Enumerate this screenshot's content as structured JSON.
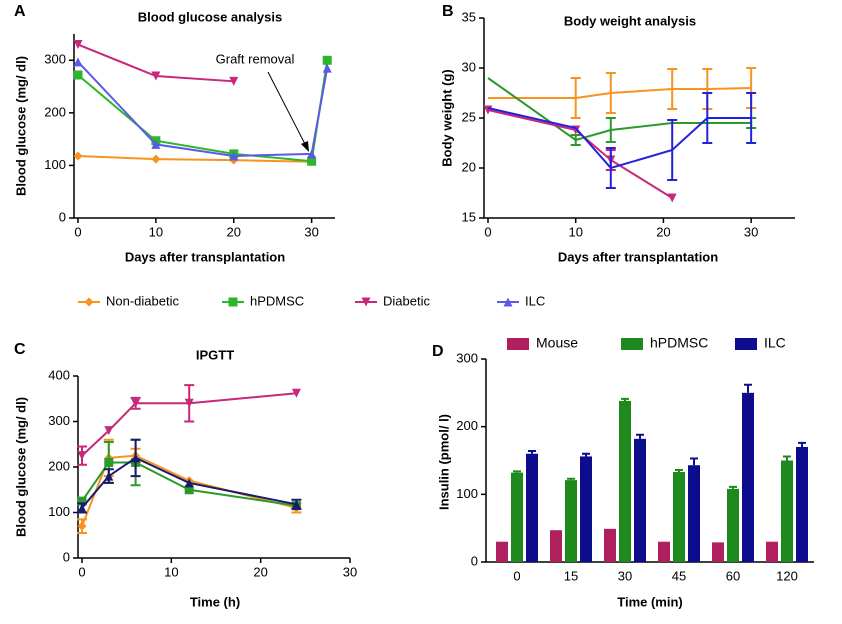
{
  "chart_data": [
    {
      "panel": "A",
      "type": "line",
      "title": "Blood glucose analysis",
      "xlabel": "Days after transplantation",
      "ylabel": "Blood glucose (mg/ dl)",
      "xlim": [
        0,
        33
      ],
      "ylim": [
        0,
        350
      ],
      "xticks": [
        0,
        10,
        20,
        30
      ],
      "yticks": [
        0,
        100,
        200,
        300
      ],
      "legend": "bottom",
      "annotation": "Graft removal",
      "series": [
        {
          "name": "Non-diabetic",
          "color": "#f7931e",
          "marker": "diamond",
          "x": [
            0,
            10,
            20,
            30
          ],
          "values": [
            118,
            112,
            110,
            107
          ]
        },
        {
          "name": "hPDMSC",
          "color": "#2db52d",
          "marker": "square",
          "x": [
            0,
            10,
            20,
            30,
            32
          ],
          "values": [
            272,
            147,
            122,
            108,
            300
          ]
        },
        {
          "name": "Diabetic",
          "color": "#c8287a",
          "marker": "tri-down",
          "x": [
            0,
            10,
            20
          ],
          "values": [
            330,
            270,
            260
          ]
        },
        {
          "name": "ILC",
          "color": "#5a5ae6",
          "marker": "tri-up",
          "x": [
            0,
            10,
            20,
            30,
            32
          ],
          "values": [
            297,
            140,
            118,
            122,
            285
          ]
        }
      ]
    },
    {
      "panel": "B",
      "type": "line",
      "title": "Body weight analysis",
      "xlabel": "Days after transplantation",
      "ylabel": "Body weight (g)",
      "xlim": [
        0,
        35
      ],
      "ylim": [
        15,
        35
      ],
      "xticks": [
        0,
        10,
        20,
        30
      ],
      "yticks": [
        15,
        20,
        25,
        30,
        35
      ],
      "series": [
        {
          "color": "#f7931e",
          "marker": "none",
          "x": [
            0,
            10,
            14,
            21,
            25,
            30
          ],
          "values": [
            27.0,
            27.0,
            27.5,
            27.9,
            27.9,
            28.0
          ],
          "errors": [
            null,
            2,
            2,
            2,
            2,
            2
          ]
        },
        {
          "color": "#2a9a2a",
          "marker": "none",
          "x": [
            0,
            10,
            14,
            21,
            25,
            30
          ],
          "values": [
            29.0,
            22.8,
            23.8,
            24.5,
            24.5,
            24.5
          ],
          "errors": [
            null,
            0.5,
            1.2,
            null,
            null,
            0.5
          ]
        },
        {
          "color": "#c8287a",
          "marker": "tri-down",
          "x": [
            0,
            10,
            14,
            21
          ],
          "values": [
            25.8,
            23.8,
            20.8,
            17.0
          ],
          "errors": [
            null,
            null,
            1,
            null
          ]
        },
        {
          "color": "#2222dd",
          "marker": "none",
          "x": [
            0,
            10,
            14,
            21,
            25,
            30
          ],
          "values": [
            26.0,
            24.0,
            20.0,
            21.8,
            25.0,
            25.0
          ],
          "errors": [
            null,
            null,
            2,
            3,
            2.5,
            2.5
          ]
        }
      ]
    },
    {
      "panel": "C",
      "type": "line",
      "title": "IPGTT",
      "xlabel": "Time (h)",
      "ylabel": "Blood glucose (mg/ dl)",
      "xlim": [
        0,
        30
      ],
      "ylim": [
        0,
        400
      ],
      "xticks": [
        0,
        10,
        20,
        30
      ],
      "yticks": [
        0,
        100,
        200,
        300,
        400
      ],
      "series": [
        {
          "color": "#f7931e",
          "marker": "diamond",
          "x": [
            0,
            3,
            6,
            12,
            24
          ],
          "values": [
            70,
            220,
            225,
            170,
            110
          ],
          "errors": [
            15,
            40,
            15,
            null,
            10
          ]
        },
        {
          "color": "#2a9a2a",
          "marker": "square",
          "x": [
            0,
            3,
            6,
            12,
            24
          ],
          "values": [
            125,
            210,
            210,
            150,
            115
          ],
          "errors": [
            null,
            45,
            50,
            null,
            null
          ]
        },
        {
          "color": "#c8287a",
          "marker": "tri-down",
          "x": [
            0,
            3,
            6,
            12,
            24
          ],
          "values": [
            225,
            280,
            340,
            340,
            362
          ],
          "errors": [
            20,
            null,
            12,
            40,
            null
          ]
        },
        {
          "color": "#1a1a6e",
          "marker": "tri-up",
          "x": [
            0,
            3,
            6,
            12,
            24
          ],
          "values": [
            110,
            180,
            220,
            165,
            118
          ],
          "errors": [
            10,
            15,
            40,
            null,
            10
          ]
        }
      ]
    },
    {
      "panel": "D",
      "type": "bar",
      "xlabel": "Time (min)",
      "ylabel": "Insulin (pmol/ l)",
      "categories": [
        "0",
        "15",
        "30",
        "45",
        "60",
        "120"
      ],
      "ylim": [
        0,
        300
      ],
      "yticks": [
        0,
        100,
        200,
        300
      ],
      "legend": "top",
      "series": [
        {
          "name": "Mouse",
          "color": "#b0205e",
          "values": [
            30,
            47,
            49,
            30,
            29,
            30
          ],
          "errors": [
            null,
            null,
            null,
            null,
            null,
            null
          ]
        },
        {
          "name": "hPDMSC",
          "color": "#1e8a1e",
          "values": [
            132,
            121,
            238,
            133,
            108,
            150
          ],
          "errors": [
            2,
            2,
            3,
            3,
            3,
            6
          ]
        },
        {
          "name": "ILC",
          "color": "#0c0c8c",
          "values": [
            160,
            156,
            182,
            143,
            250,
            170
          ],
          "errors": [
            4,
            4,
            6,
            10,
            12,
            6
          ]
        }
      ]
    }
  ]
}
